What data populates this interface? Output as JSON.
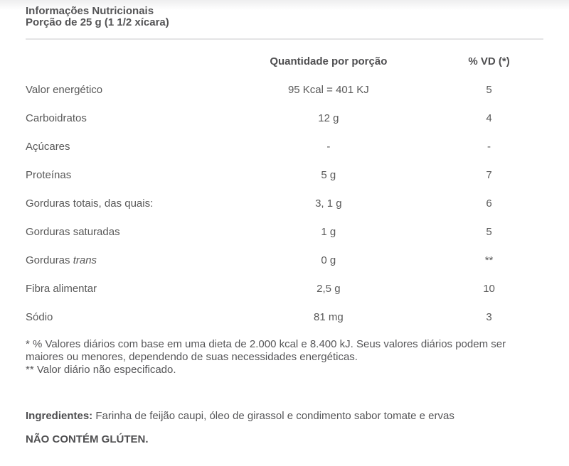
{
  "header": {
    "title": "Informações Nutricionais",
    "subtitle": "Porção de 25 g (1 1/2 xícara)"
  },
  "table": {
    "columns": {
      "quantity": "Quantidade por porção",
      "dv": "% VD (*)"
    },
    "rows": [
      {
        "label": "Valor energético",
        "quantity": "95 Kcal = 401 KJ",
        "dv": "5"
      },
      {
        "label": "Carboidratos",
        "quantity": "12 g",
        "dv": "4"
      },
      {
        "label": "Açúcares",
        "quantity": "-",
        "dv": "-"
      },
      {
        "label": "Proteínas",
        "quantity": "5 g",
        "dv": "7"
      },
      {
        "label": "Gorduras totais, das quais:",
        "quantity": "3, 1 g",
        "dv": "6"
      },
      {
        "label": "Gorduras saturadas",
        "quantity": "1 g",
        "dv": "5"
      },
      {
        "label": "Gorduras ",
        "label_italic": "trans",
        "quantity": "0 g",
        "dv": "**"
      },
      {
        "label": "Fibra alimentar",
        "quantity": "2,5 g",
        "dv": "10"
      },
      {
        "label": "Sódio",
        "quantity": "81 mg",
        "dv": "3"
      }
    ]
  },
  "footnotes": {
    "line1": "* % Valores diários com base em uma dieta de 2.000 kcal e 8.400 kJ. Seus valores diários podem ser maiores ou menores, dependendo de suas necessidades energéticas.",
    "line2": "** Valor diário não especificado."
  },
  "ingredients": {
    "label": "Ingredientes:",
    "text": " Farinha de feijão caupi, óleo de girassol e condimento sabor tomate e ervas",
    "gluten_notice": "NÃO CONTÉM GLÚTEN."
  }
}
